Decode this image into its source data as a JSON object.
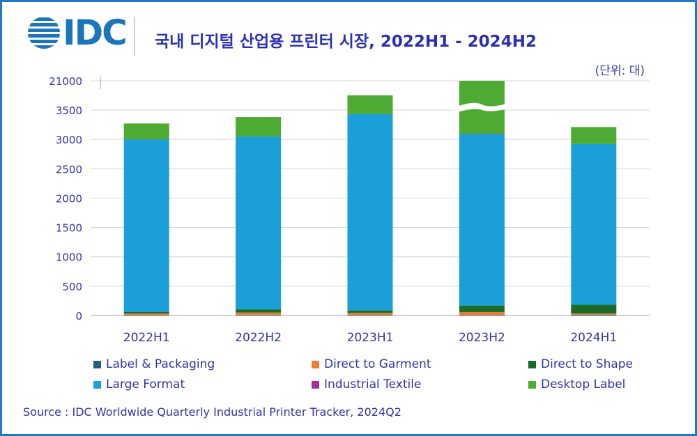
{
  "logo": {
    "text": "IDC"
  },
  "title": "국내 디지털 산업용 프린터 시장, 2022H1 - 2024H2",
  "unit_label": "(단위: 대)",
  "source": "Source : IDC Worldwide Quarterly Industrial Printer Tracker, 2024Q2",
  "colors": {
    "frame": "#1f78c8",
    "title": "#2a2fb5",
    "label_packaging": "#1f5f7f",
    "direct_to_garment": "#ed7d31",
    "direct_to_shape": "#1a6b28",
    "large_format": "#1a9fd8",
    "industrial_textile": "#a0309a",
    "desktop_label": "#4daa32"
  },
  "chart_data": {
    "type": "bar",
    "stacked": true,
    "categories": [
      "2022H1",
      "2022H2",
      "2023H1",
      "2023H2",
      "2024H1"
    ],
    "y_tick_labels": [
      "0",
      "500",
      "1000",
      "1500",
      "2000",
      "2500",
      "3000",
      "3500",
      "21000"
    ],
    "ylim": [
      0,
      4000
    ],
    "axis_break": {
      "tick_label": "21000",
      "series_clipped": "Desktop Label",
      "category": "2023H2"
    },
    "grid": true,
    "legend_position": "bottom",
    "series": [
      {
        "name": "Label & Packaging",
        "color": "#1f5f7f",
        "values": [
          10,
          10,
          10,
          10,
          15
        ]
      },
      {
        "name": "Direct to Garment",
        "color": "#ed7d31",
        "values": [
          25,
          40,
          35,
          50,
          20
        ]
      },
      {
        "name": "Direct to Shape",
        "color": "#1a6b28",
        "values": [
          25,
          55,
          40,
          110,
          150
        ]
      },
      {
        "name": "Large Format",
        "color": "#1a9fd8",
        "values": [
          2940,
          2945,
          3345,
          2920,
          2735
        ]
      },
      {
        "name": "Industrial Textile",
        "color": "#a0309a",
        "values": [
          0,
          0,
          0,
          5,
          0
        ]
      },
      {
        "name": "Desktop Label",
        "color": "#4daa32",
        "values": [
          270,
          330,
          320,
          18000,
          290
        ]
      }
    ]
  }
}
